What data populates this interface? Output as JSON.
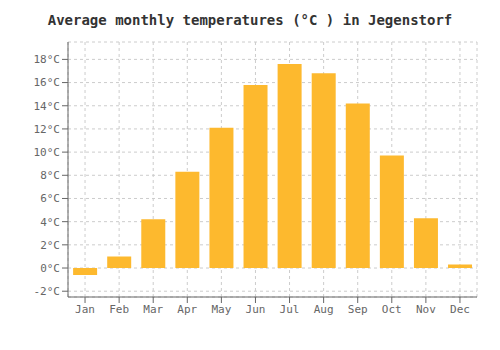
{
  "chart_data": {
    "type": "bar",
    "title": "Average monthly temperatures (°C ) in Jegenstorf",
    "categories": [
      "Jan",
      "Feb",
      "Mar",
      "Apr",
      "May",
      "Jun",
      "Jul",
      "Aug",
      "Sep",
      "Oct",
      "Nov",
      "Dec"
    ],
    "values": [
      -0.6,
      1.0,
      4.2,
      8.3,
      12.1,
      15.8,
      17.6,
      16.8,
      14.2,
      9.7,
      4.3,
      0.3
    ],
    "color": "#FDB92E",
    "ylim": [
      -2.5,
      19.5
    ],
    "yticks": [
      {
        "value": -2,
        "label": "-2°C"
      },
      {
        "value": 0,
        "label": "0°C"
      },
      {
        "value": 2,
        "label": "2°C"
      },
      {
        "value": 4,
        "label": "4°C"
      },
      {
        "value": 6,
        "label": "6°C"
      },
      {
        "value": 8,
        "label": "8°C"
      },
      {
        "value": 10,
        "label": "10°C"
      },
      {
        "value": 12,
        "label": "12°C"
      },
      {
        "value": 14,
        "label": "14°C"
      },
      {
        "value": 16,
        "label": "16°C"
      },
      {
        "value": 18,
        "label": "18°C"
      }
    ],
    "grid": true
  }
}
